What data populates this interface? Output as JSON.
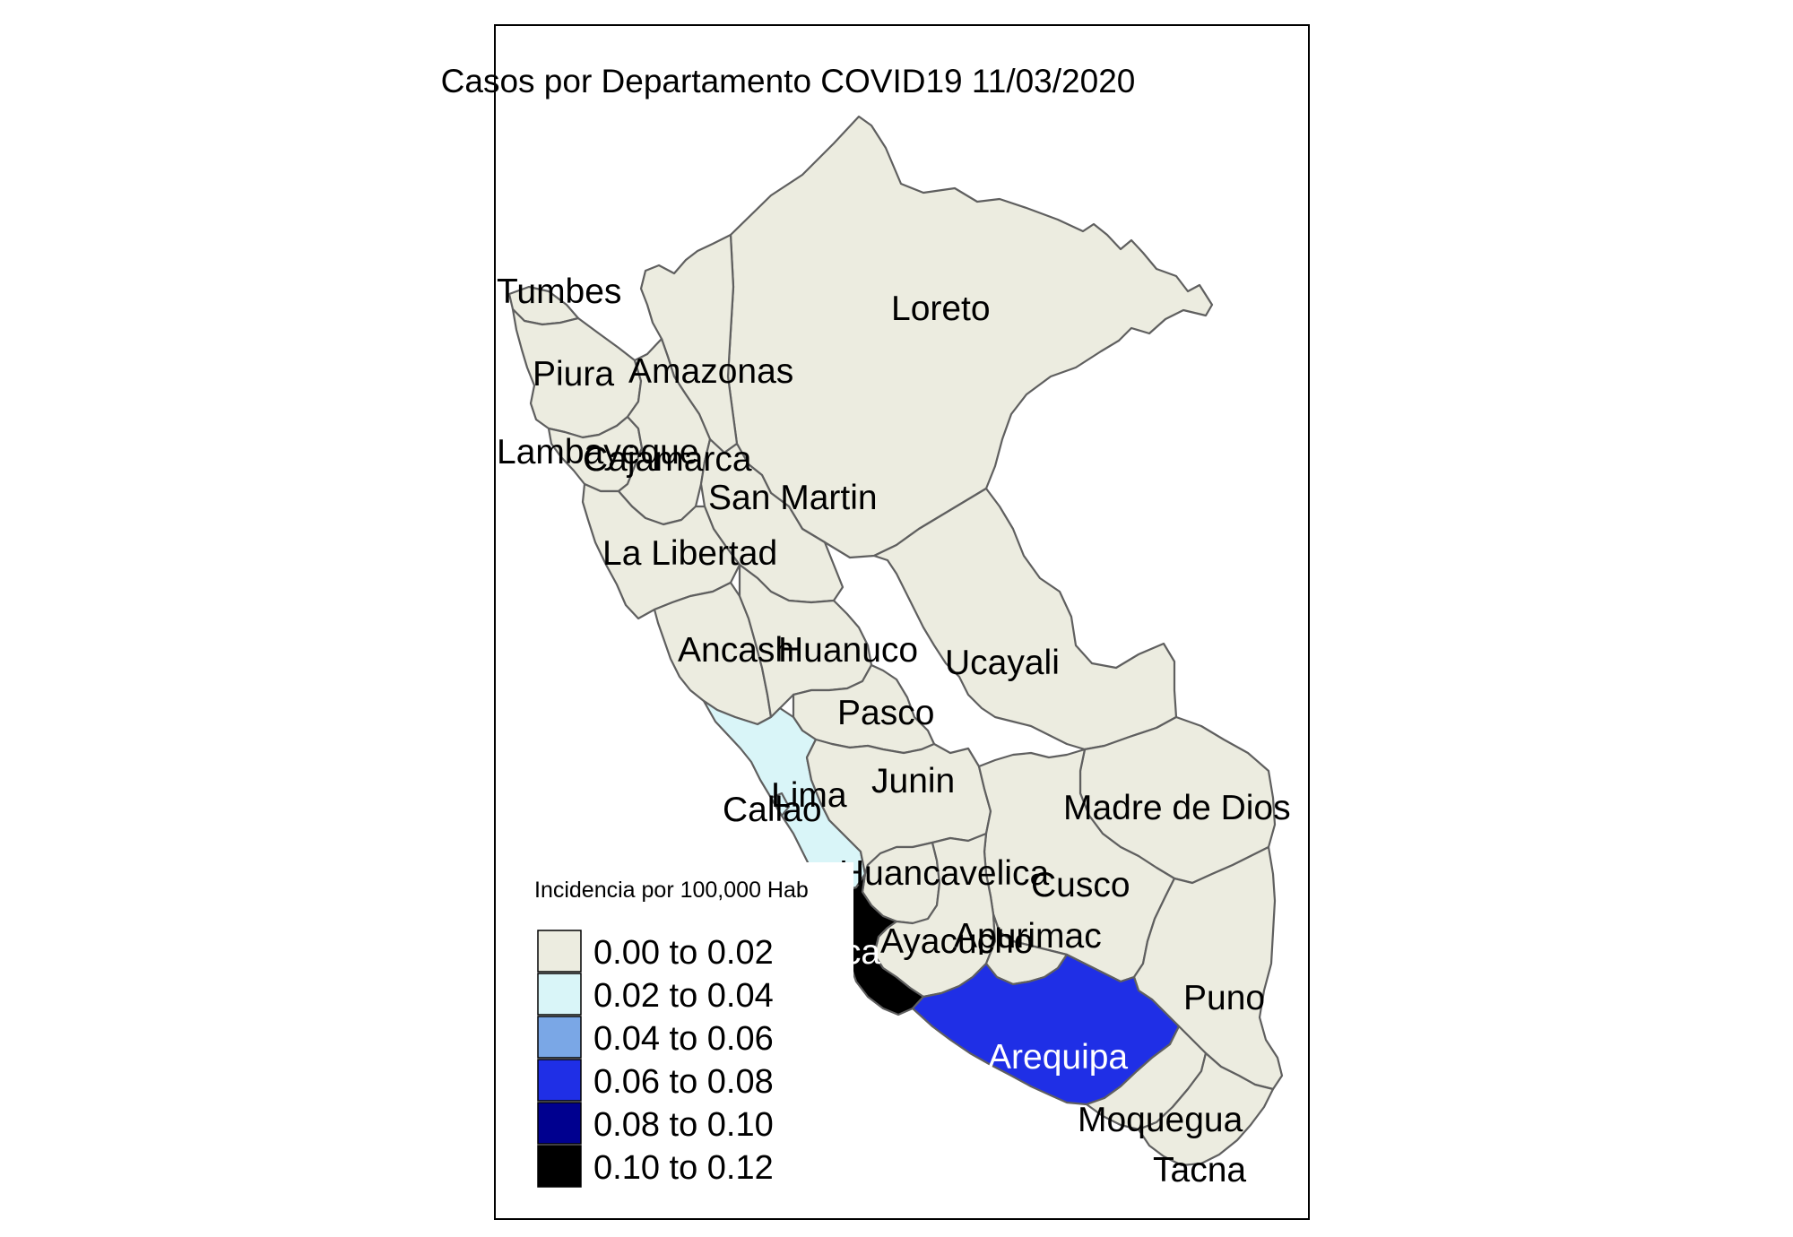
{
  "map": {
    "title": "Casos por Departamento COVID19  11/03/2020",
    "colors": {
      "background": "#ffffff",
      "frame": "#000000",
      "border": "#5f5f5f",
      "bin_1": "#ecece0",
      "bin_2": "#d9f5f8",
      "bin_3": "#7aa7e6",
      "bin_4": "#1f2fe6",
      "bin_5": "#00008f",
      "bin_6": "#000000"
    },
    "legend": {
      "title": "Incidencia por 100,000 Hab",
      "items": [
        {
          "label": "0.00 to 0.02",
          "color": "#ecece0"
        },
        {
          "label": "0.02 to 0.04",
          "color": "#d9f5f8"
        },
        {
          "label": "0.04 to 0.06",
          "color": "#7aa7e6"
        },
        {
          "label": "0.06 to 0.08",
          "color": "#1f2fe6"
        },
        {
          "label": "0.08 to 0.10",
          "color": "#00008f"
        },
        {
          "label": "0.10 to 0.12",
          "color": "#000000"
        }
      ]
    },
    "departments": [
      {
        "name": "Tumbes",
        "bin": 0
      },
      {
        "name": "Piura",
        "bin": 0
      },
      {
        "name": "Amazonas",
        "bin": 0
      },
      {
        "name": "Loreto",
        "bin": 0
      },
      {
        "name": "Lambayeque",
        "bin": 0
      },
      {
        "name": "Cajamarca",
        "bin": 0
      },
      {
        "name": "San Martin",
        "bin": 0
      },
      {
        "name": "La Libertad",
        "bin": 0
      },
      {
        "name": "Ancash",
        "bin": 0
      },
      {
        "name": "Huanuco",
        "bin": 0
      },
      {
        "name": "Ucayali",
        "bin": 0
      },
      {
        "name": "Pasco",
        "bin": 0
      },
      {
        "name": "Junin",
        "bin": 0
      },
      {
        "name": "Lima",
        "bin": 1
      },
      {
        "name": "Callao",
        "bin": 1
      },
      {
        "name": "Madre de Dios",
        "bin": 0
      },
      {
        "name": "Huancavelica",
        "bin": 0
      },
      {
        "name": "Cusco",
        "bin": 0
      },
      {
        "name": "Ica",
        "bin": 5
      },
      {
        "name": "Ayacucho",
        "bin": 0
      },
      {
        "name": "Apurimac",
        "bin": 0
      },
      {
        "name": "Puno",
        "bin": 0
      },
      {
        "name": "Arequipa",
        "bin": 3
      },
      {
        "name": "Moquegua",
        "bin": 0
      },
      {
        "name": "Tacna",
        "bin": 0
      }
    ]
  }
}
